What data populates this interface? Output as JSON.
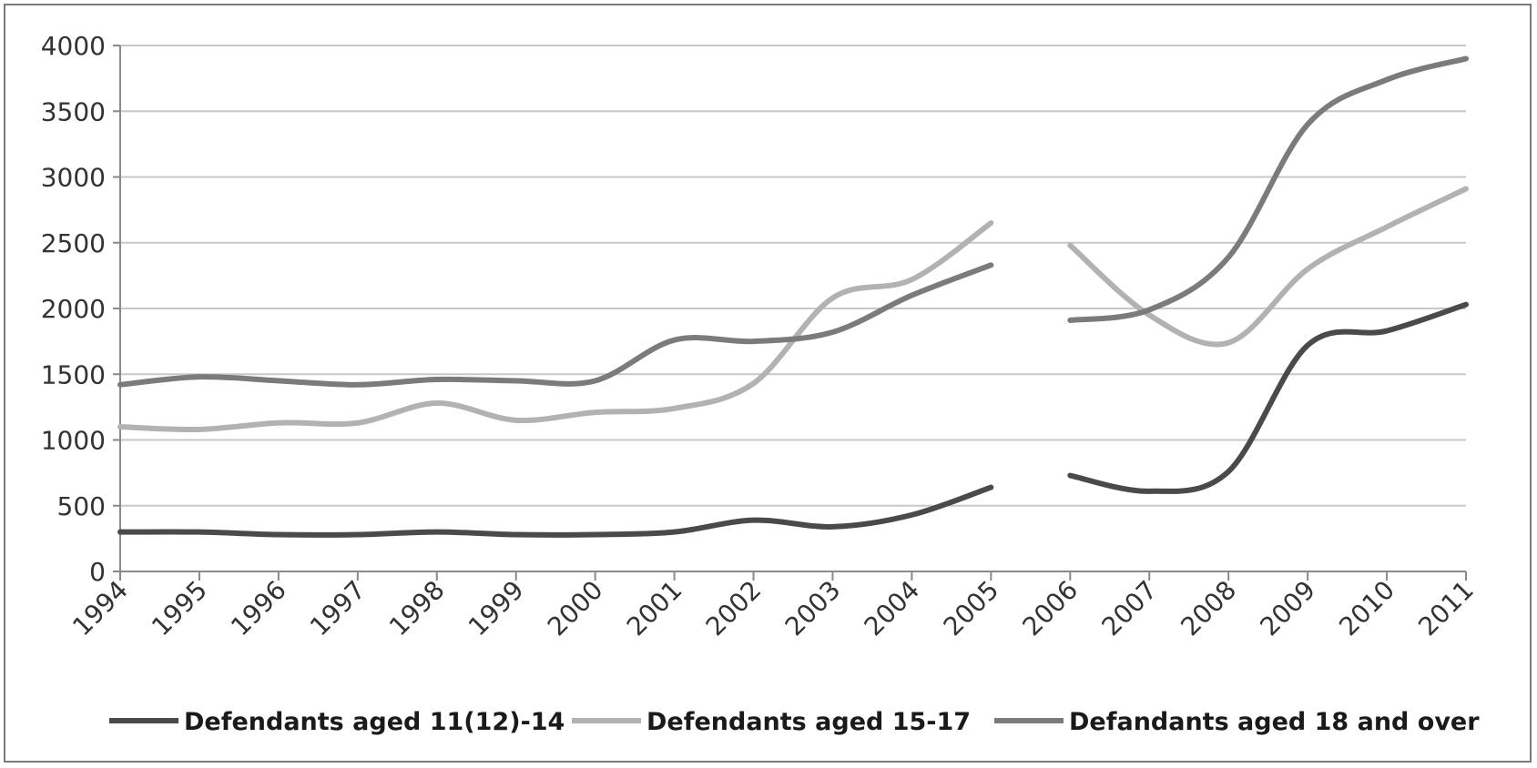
{
  "chart_data": {
    "type": "line",
    "title": "",
    "xlabel": "",
    "ylabel": "",
    "categories": [
      "1994",
      "1995",
      "1996",
      "1997",
      "1998",
      "1999",
      "2000",
      "2001",
      "2002",
      "2003",
      "2004",
      "2005",
      "2006",
      "2007",
      "2008",
      "2009",
      "2010",
      "2011"
    ],
    "ylim": [
      0,
      4000
    ],
    "yticks": [
      0,
      500,
      1000,
      1500,
      2000,
      2500,
      3000,
      3500,
      4000
    ],
    "grid": true,
    "legend_position": "bottom",
    "series": [
      {
        "name": "Defendants aged 11(12)-14",
        "color": "#4a4a4a",
        "values": [
          300,
          300,
          280,
          280,
          300,
          280,
          280,
          300,
          390,
          340,
          430,
          640,
          730,
          610,
          760,
          1720,
          1830,
          2030
        ]
      },
      {
        "name": "Defendants aged 15-17",
        "color": "#b2b2b2",
        "values": [
          1100,
          1080,
          1130,
          1130,
          1280,
          1150,
          1210,
          1240,
          1430,
          2080,
          2220,
          2650,
          2480,
          1950,
          1740,
          2300,
          2620,
          2910
        ]
      },
      {
        "name": "Defandants aged 18 and over",
        "color": "#7b7b7b",
        "values": [
          1420,
          1480,
          1450,
          1420,
          1460,
          1450,
          1450,
          1760,
          1750,
          1820,
          2100,
          2330,
          1910,
          1990,
          2390,
          3400,
          3740,
          3900
        ]
      }
    ],
    "gap_after_category": "2005"
  }
}
